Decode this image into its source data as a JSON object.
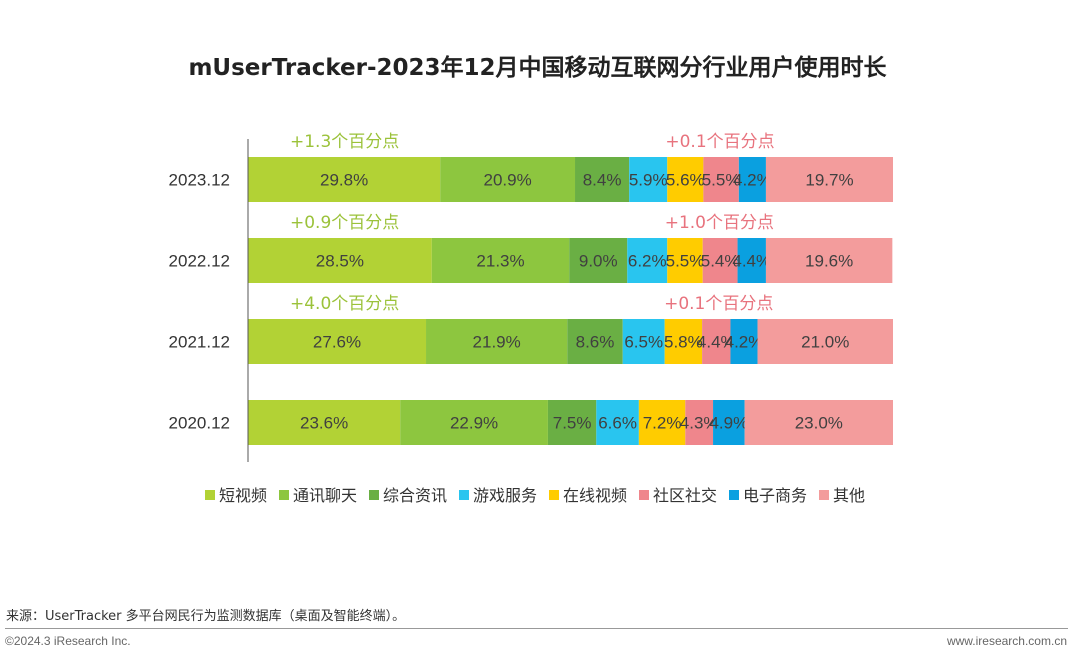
{
  "chart_data": {
    "type": "bar",
    "orientation": "horizontal",
    "stacked": true,
    "title": "mUserTracker-2023年12月中国移动互联网分行业用户使用时长",
    "categories": [
      "2023.12",
      "2022.12",
      "2021.12",
      "2020.12"
    ],
    "series": [
      {
        "name": "短视频",
        "color": "#b2d235",
        "values": [
          29.8,
          28.5,
          27.6,
          23.6
        ],
        "labels": [
          "29.8%",
          "28.5%",
          "27.6%",
          "23.6%"
        ]
      },
      {
        "name": "通讯聊天",
        "color": "#8dc63f",
        "values": [
          20.9,
          21.3,
          21.9,
          22.9
        ],
        "labels": [
          "20.9%",
          "21.3%",
          "21.9%",
          "22.9%"
        ]
      },
      {
        "name": "综合资讯",
        "color": "#6aaf44",
        "values": [
          8.4,
          9.0,
          8.6,
          7.5
        ],
        "labels": [
          "8.4%",
          "9.0%",
          "8.6%",
          "7.5%"
        ]
      },
      {
        "name": "游戏服务",
        "color": "#29c5ef",
        "values": [
          5.9,
          6.2,
          6.5,
          6.6
        ],
        "labels": [
          "5.9%",
          "6.2%",
          "6.5%",
          "6.6%"
        ]
      },
      {
        "name": "在线视频",
        "color": "#ffcc00",
        "values": [
          5.6,
          5.5,
          5.8,
          7.2
        ],
        "labels": [
          "5.6%",
          "5.5%",
          "5.8%",
          "7.2%"
        ]
      },
      {
        "name": "社区社交",
        "color": "#ef868c",
        "values": [
          5.5,
          5.4,
          4.4,
          4.3
        ],
        "labels": [
          "5.5%",
          "5.4%",
          "4.4%",
          "4.3%"
        ]
      },
      {
        "name": "电子商务",
        "color": "#0aa0e0",
        "values": [
          4.2,
          4.4,
          4.2,
          4.9
        ],
        "labels": [
          "4.2%",
          "4.4%",
          "4.2%",
          "4.9%"
        ]
      },
      {
        "name": "其他",
        "color": "#f39c9c",
        "values": [
          19.7,
          19.6,
          21.0,
          23.0
        ],
        "labels": [
          "19.7%",
          "19.6%",
          "21.0%",
          "23.0%"
        ]
      }
    ],
    "xlim": [
      0,
      100
    ],
    "legend_position": "bottom",
    "annotations": [
      {
        "category": "2023.12",
        "series": "短视频",
        "text": "+1.3个百分点",
        "color": "#9bc23a"
      },
      {
        "category": "2023.12",
        "series": "社区社交",
        "text": "+0.1个百分点",
        "color": "#e8737e"
      },
      {
        "category": "2022.12",
        "series": "短视频",
        "text": "+0.9个百分点",
        "color": "#9bc23a"
      },
      {
        "category": "2022.12",
        "series": "社区社交",
        "text": "+1.0个百分点",
        "color": "#e8737e"
      },
      {
        "category": "2021.12",
        "series": "短视频",
        "text": "+4.0个百分点",
        "color": "#9bc23a"
      },
      {
        "category": "2021.12",
        "series": "社区社交",
        "text": "+0.1个百分点",
        "color": "#e8737e"
      }
    ]
  },
  "footer": {
    "source": "来源：UserTracker 多平台网民行为监测数据库（桌面及智能终端）。",
    "copyright": "©2024.3 iResearch Inc.",
    "website": "www.iresearch.com.cn"
  }
}
